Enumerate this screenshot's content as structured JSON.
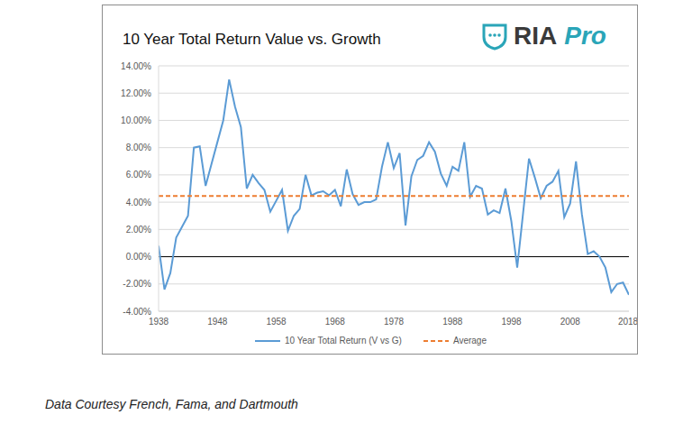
{
  "chart_data": {
    "type": "line",
    "title": "10 Year Total Return Value vs. Growth",
    "logo": "RIA Pro",
    "caption": "Data Courtesy French, Fama, and Dartmouth",
    "x": [
      1938,
      1939,
      1940,
      1941,
      1942,
      1943,
      1944,
      1945,
      1946,
      1947,
      1948,
      1949,
      1950,
      1951,
      1952,
      1953,
      1954,
      1955,
      1956,
      1957,
      1958,
      1959,
      1960,
      1961,
      1962,
      1963,
      1964,
      1965,
      1966,
      1967,
      1968,
      1969,
      1970,
      1971,
      1972,
      1973,
      1974,
      1975,
      1976,
      1977,
      1978,
      1979,
      1980,
      1981,
      1982,
      1983,
      1984,
      1985,
      1986,
      1987,
      1988,
      1989,
      1990,
      1991,
      1992,
      1993,
      1994,
      1995,
      1996,
      1997,
      1998,
      1999,
      2000,
      2001,
      2002,
      2003,
      2004,
      2005,
      2006,
      2007,
      2008,
      2009,
      2010,
      2011,
      2012,
      2013,
      2014,
      2015,
      2016,
      2017,
      2018
    ],
    "series": [
      {
        "name": "10 Year Total Return (V vs G)",
        "color": "#5b9bd5",
        "line_style": "solid",
        "values": [
          0.8,
          -2.4,
          -1.2,
          1.4,
          2.2,
          3.0,
          8.0,
          8.1,
          5.2,
          6.8,
          8.4,
          10.0,
          13.0,
          11.0,
          9.5,
          5.0,
          6.0,
          5.4,
          4.9,
          3.3,
          4.1,
          4.9,
          1.9,
          3.0,
          3.5,
          6.0,
          4.5,
          4.7,
          4.8,
          4.5,
          4.9,
          3.7,
          6.4,
          4.6,
          3.8,
          4.0,
          4.0,
          4.2,
          6.6,
          8.4,
          6.5,
          7.6,
          2.3,
          5.9,
          7.1,
          7.4,
          8.4,
          7.7,
          6.1,
          5.2,
          6.6,
          6.3,
          8.4,
          4.4,
          5.2,
          5.0,
          3.1,
          3.4,
          3.2,
          5.0,
          2.6,
          -0.8,
          3.2,
          7.2,
          5.8,
          4.3,
          5.2,
          5.5,
          6.3,
          2.9,
          3.9,
          7.0,
          3.1,
          0.2,
          0.4,
          0.0,
          -0.8,
          -2.6,
          -2.0,
          -1.9,
          -2.8
        ]
      },
      {
        "name": "Average",
        "color": "#ed7d31",
        "line_style": "dashed",
        "values": [
          4.45,
          4.45,
          4.45,
          4.45,
          4.45,
          4.45,
          4.45,
          4.45,
          4.45,
          4.45,
          4.45,
          4.45,
          4.45,
          4.45,
          4.45,
          4.45,
          4.45,
          4.45,
          4.45,
          4.45,
          4.45,
          4.45,
          4.45,
          4.45,
          4.45,
          4.45,
          4.45,
          4.45,
          4.45,
          4.45,
          4.45,
          4.45,
          4.45,
          4.45,
          4.45,
          4.45,
          4.45,
          4.45,
          4.45,
          4.45,
          4.45,
          4.45,
          4.45,
          4.45,
          4.45,
          4.45,
          4.45,
          4.45,
          4.45,
          4.45,
          4.45,
          4.45,
          4.45,
          4.45,
          4.45,
          4.45,
          4.45,
          4.45,
          4.45,
          4.45,
          4.45,
          4.45,
          4.45,
          4.45,
          4.45,
          4.45,
          4.45,
          4.45,
          4.45,
          4.45,
          4.45,
          4.45,
          4.45,
          4.45,
          4.45,
          4.45,
          4.45,
          4.45,
          4.45,
          4.45,
          4.45
        ]
      }
    ],
    "xlim": [
      1938,
      2018
    ],
    "xticks": [
      1938,
      1948,
      1958,
      1968,
      1978,
      1988,
      1998,
      2008,
      2018
    ],
    "ylim": [
      -4,
      14
    ],
    "yticks": [
      {
        "value": -4,
        "label": "-4.00%"
      },
      {
        "value": -2,
        "label": "-2.00%"
      },
      {
        "value": 0,
        "label": "0.00%"
      },
      {
        "value": 2,
        "label": "2.00%"
      },
      {
        "value": 4,
        "label": "4.00%"
      },
      {
        "value": 6,
        "label": "6.00%"
      },
      {
        "value": 8,
        "label": "8.00%"
      },
      {
        "value": 10,
        "label": "10.00%"
      },
      {
        "value": 12,
        "label": "12.00%"
      },
      {
        "value": 14,
        "label": "14.00%"
      }
    ],
    "grid": true,
    "legend": "bottom"
  }
}
